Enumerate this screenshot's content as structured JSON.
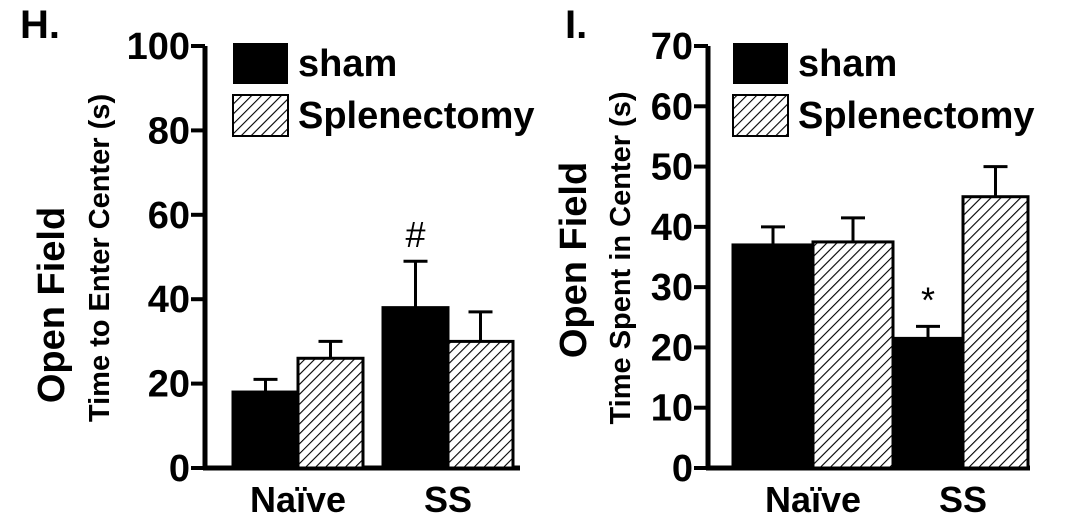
{
  "chart_data": [
    {
      "panel": "H.",
      "type": "bar",
      "ylabel_line1": "Open Field",
      "ylabel_line2": "Time to Enter Center (s)",
      "categories": [
        "Naïve",
        "SS"
      ],
      "ylim": [
        0,
        100
      ],
      "yticks": [
        "0",
        "20",
        "40",
        "60",
        "80",
        "100"
      ],
      "series": [
        {
          "name": "sham",
          "values": [
            18,
            38
          ],
          "errors": [
            3,
            11
          ],
          "style": "solid"
        },
        {
          "name": "Splenectomy",
          "values": [
            26,
            30
          ],
          "errors": [
            4,
            7
          ],
          "style": "hatched"
        }
      ],
      "annotations": [
        {
          "text": "#",
          "category_index": 1,
          "series_index": 0
        }
      ]
    },
    {
      "panel": "I.",
      "type": "bar",
      "ylabel_line1": "Open Field",
      "ylabel_line2": "Time Spent in Center (s)",
      "categories": [
        "Naïve",
        "SS"
      ],
      "ylim": [
        0,
        70
      ],
      "yticks": [
        "0",
        "10",
        "20",
        "30",
        "40",
        "50",
        "60",
        "70"
      ],
      "series": [
        {
          "name": "sham",
          "values": [
            37,
            21.5
          ],
          "errors": [
            3,
            2
          ],
          "style": "solid"
        },
        {
          "name": "Splenectomy",
          "values": [
            37.5,
            45
          ],
          "errors": [
            4,
            5
          ],
          "style": "hatched"
        }
      ],
      "annotations": [
        {
          "text": "*",
          "category_index": 1,
          "series_index": 0
        }
      ]
    }
  ],
  "colors": {
    "bar": "#000000",
    "hatch_bg": "#ffffff",
    "axis": "#000000"
  }
}
